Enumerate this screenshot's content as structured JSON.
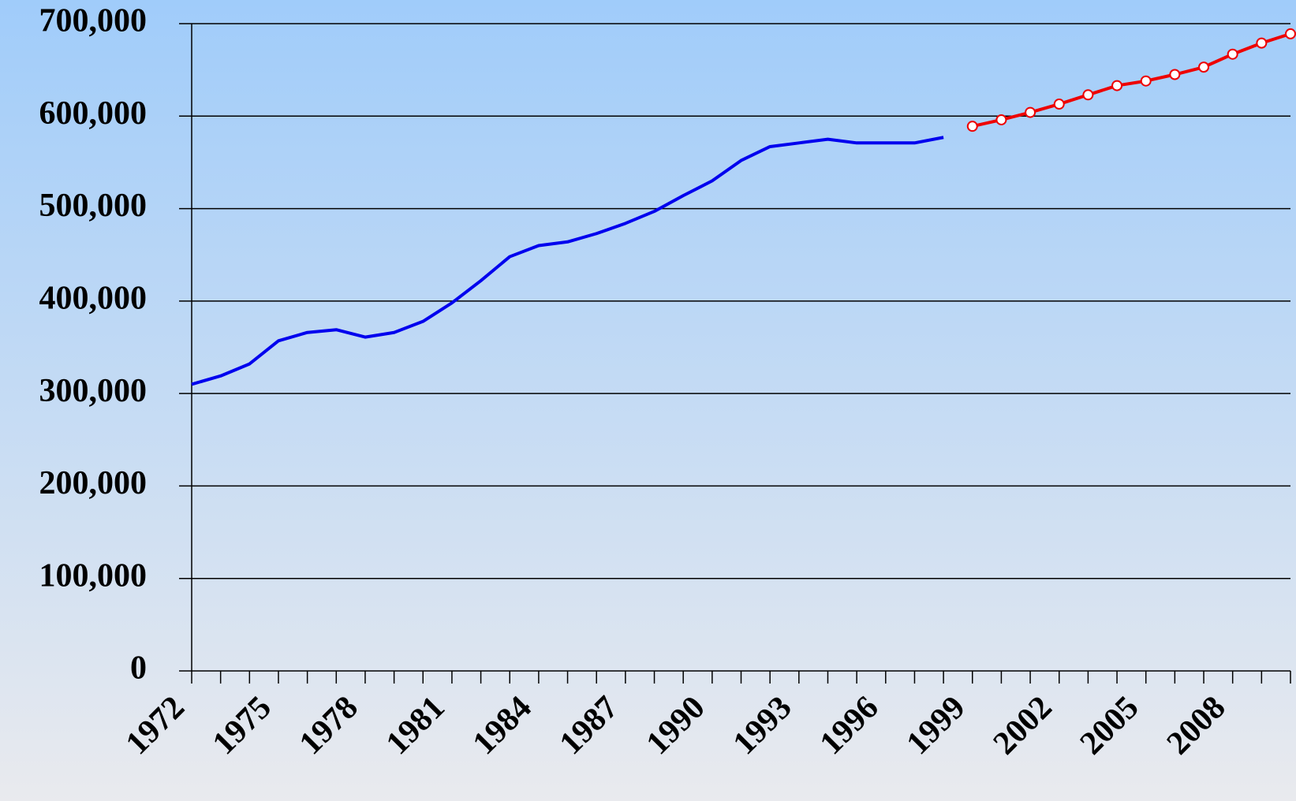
{
  "chart_data": {
    "type": "line",
    "x": [
      1972,
      1973,
      1974,
      1975,
      1976,
      1977,
      1978,
      1979,
      1980,
      1981,
      1982,
      1983,
      1984,
      1985,
      1986,
      1987,
      1988,
      1989,
      1990,
      1991,
      1992,
      1993,
      1994,
      1995,
      1996,
      1997,
      1998,
      1999,
      2000,
      2001,
      2002,
      2003,
      2004,
      2005,
      2006,
      2007,
      2008,
      2009,
      2010
    ],
    "series": [
      {
        "color": "#0000ee",
        "markers": false,
        "values": [
          310000,
          319000,
          332000,
          357000,
          366000,
          369000,
          361000,
          366000,
          378000,
          398000,
          422000,
          448000,
          460000,
          464000,
          473000,
          484000,
          497000,
          514000,
          530000,
          552000,
          567000,
          571000,
          575000,
          571000,
          571000,
          571000,
          577000,
          null,
          null,
          null,
          null,
          null,
          null,
          null,
          null,
          null,
          null,
          null,
          null
        ]
      },
      {
        "color": "#ee0000",
        "markers": true,
        "values": [
          null,
          null,
          null,
          null,
          null,
          null,
          null,
          null,
          null,
          null,
          null,
          null,
          null,
          null,
          null,
          null,
          null,
          null,
          null,
          null,
          null,
          null,
          null,
          null,
          null,
          null,
          null,
          589000,
          596000,
          604000,
          613000,
          623000,
          633000,
          638000,
          645000,
          653000,
          667000,
          679000,
          689000
        ]
      }
    ],
    "xlim": [
      1972,
      2010
    ],
    "xticks": [
      1972,
      1975,
      1978,
      1981,
      1984,
      1987,
      1990,
      1993,
      1996,
      1999,
      2002,
      2005,
      2008
    ],
    "ylim": [
      0,
      700000
    ],
    "yticks": [
      0,
      {
        "value": 100000,
        "label": "100,000"
      },
      {
        "value": 200000,
        "label": "200,000"
      },
      {
        "value": 300000,
        "label": "300,000"
      },
      {
        "value": 400000,
        "label": "400,000"
      },
      {
        "value": 500000,
        "label": "500,000"
      },
      {
        "value": 600000,
        "label": "600,000"
      },
      {
        "value": 700000,
        "label": "700,000"
      }
    ],
    "grid": true
  }
}
